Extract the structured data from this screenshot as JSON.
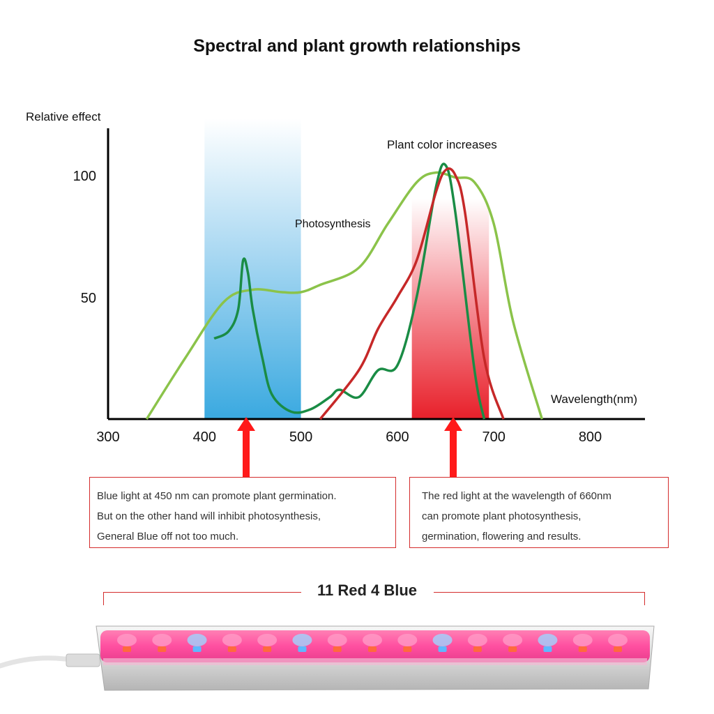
{
  "title": "Spectral and plant growth relationships",
  "chart_data": {
    "type": "line",
    "ylabel": "Relative effect",
    "xlabel": "Wavelength(nm)",
    "xlim": [
      300,
      860
    ],
    "ylim": [
      0,
      120
    ],
    "xticks": [
      300,
      400,
      500,
      600,
      700,
      800
    ],
    "yticks": [
      50,
      100
    ],
    "bands": [
      {
        "name": "blue",
        "x": [
          400,
          500
        ],
        "color": "#3aa9e0"
      },
      {
        "name": "red",
        "x": [
          615,
          695
        ],
        "color": "#e8202a"
      }
    ],
    "annotations": [
      {
        "text": "Plant color increases"
      },
      {
        "text": "Photosynthesis"
      }
    ],
    "series": [
      {
        "color": "#8bc34a",
        "x": [
          340,
          380,
          420,
          450,
          480,
          500,
          520,
          560,
          590,
          620,
          640,
          660,
          680,
          700,
          720,
          750
        ],
        "y": [
          0,
          25,
          48,
          53,
          52,
          52,
          55,
          62,
          80,
          97,
          101,
          99,
          97,
          80,
          40,
          0
        ]
      },
      {
        "color": "#1a8c45",
        "x": [
          410,
          425,
          435,
          440,
          445,
          450,
          460,
          470,
          490,
          510,
          530,
          540,
          560,
          580,
          600,
          620,
          640,
          650,
          660,
          680,
          690
        ],
        "y": [
          33,
          36,
          45,
          65,
          60,
          45,
          25,
          10,
          3,
          4,
          9,
          12,
          9,
          20,
          22,
          50,
          95,
          104,
          85,
          20,
          0
        ]
      },
      {
        "color": "#c62828",
        "x": [
          520,
          560,
          580,
          600,
          620,
          640,
          650,
          660,
          670,
          690,
          710
        ],
        "y": [
          0,
          20,
          37,
          50,
          65,
          93,
          102,
          100,
          85,
          25,
          0
        ]
      }
    ]
  },
  "callouts": {
    "blue": {
      "lines": [
        "Blue light at 450 nm can promote plant germination.",
        "But on the other hand will inhibit photosynthesis,",
        "General Blue off not too much."
      ]
    },
    "red": {
      "lines": [
        "The red light at the wavelength of 660nm",
        "can promote plant photosynthesis,",
        "germination, flowering and results."
      ]
    }
  },
  "product": {
    "label": "11 Red 4 Blue",
    "led_colors": [
      "red",
      "red",
      "blue",
      "red",
      "red",
      "blue",
      "red",
      "red",
      "red",
      "blue",
      "red",
      "red",
      "blue",
      "red",
      "red"
    ]
  },
  "colors": {
    "accent_red": "#d42b2b",
    "arrow_red": "#ff1a1a",
    "led_red": "#ff4b8c",
    "led_blue": "#5fb8ff"
  }
}
